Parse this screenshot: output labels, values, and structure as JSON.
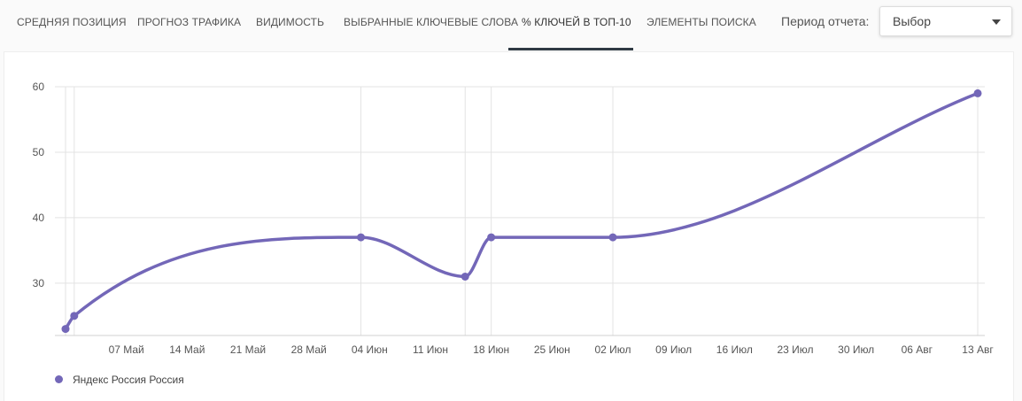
{
  "tabs": [
    {
      "label": "Средняя позиция",
      "active": false
    },
    {
      "label": "Прогноз трафика",
      "active": false
    },
    {
      "label": "Видимость",
      "active": false
    },
    {
      "label": "Выбранные ключевые слова",
      "active": false
    },
    {
      "label": "% ключей в ТОП-10",
      "active": true
    },
    {
      "label": "Элементы поиска",
      "active": false
    }
  ],
  "period": {
    "label": "Период отчета:",
    "value": "Выбор"
  },
  "colors": {
    "series": "#7367b8",
    "grid": "#e3e3e3",
    "tab_underline": "#2f3a44"
  },
  "chart_data": {
    "type": "line",
    "title": "",
    "xlabel": "",
    "ylabel": "",
    "ylim": [
      22,
      60
    ],
    "y_ticks": [
      30,
      40,
      50,
      60
    ],
    "x_range": [
      "2025-04-30",
      "2025-08-13"
    ],
    "x_ticks": [
      {
        "date": "2025-05-07",
        "label": "07 Май"
      },
      {
        "date": "2025-05-14",
        "label": "14 Май"
      },
      {
        "date": "2025-05-21",
        "label": "21 Май"
      },
      {
        "date": "2025-05-28",
        "label": "28 Май"
      },
      {
        "date": "2025-06-04",
        "label": "04 Июн"
      },
      {
        "date": "2025-06-11",
        "label": "11 Июн"
      },
      {
        "date": "2025-06-18",
        "label": "18 Июн"
      },
      {
        "date": "2025-06-25",
        "label": "25 Июн"
      },
      {
        "date": "2025-07-02",
        "label": "02 Июл"
      },
      {
        "date": "2025-07-09",
        "label": "09 Июл"
      },
      {
        "date": "2025-07-16",
        "label": "16 Июл"
      },
      {
        "date": "2025-07-23",
        "label": "23 Июл"
      },
      {
        "date": "2025-07-30",
        "label": "30 Июл"
      },
      {
        "date": "2025-08-06",
        "label": "06 Авг"
      },
      {
        "date": "2025-08-13",
        "label": "13 Авг"
      }
    ],
    "grid": true,
    "legend": "bottom-left",
    "series": [
      {
        "name": "Яндекс Россия Россия",
        "points": [
          {
            "x": "2025-04-30",
            "y": 23
          },
          {
            "x": "2025-05-01",
            "y": 25
          },
          {
            "x": "2025-06-03",
            "y": 37
          },
          {
            "x": "2025-06-15",
            "y": 31
          },
          {
            "x": "2025-06-18",
            "y": 37
          },
          {
            "x": "2025-07-02",
            "y": 37
          },
          {
            "x": "2025-08-13",
            "y": 59
          }
        ]
      }
    ]
  }
}
